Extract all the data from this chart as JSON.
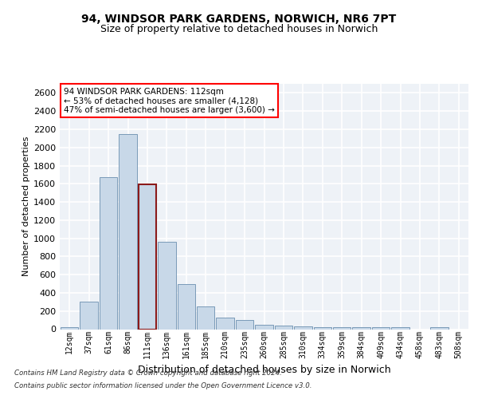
{
  "title1": "94, WINDSOR PARK GARDENS, NORWICH, NR6 7PT",
  "title2": "Size of property relative to detached houses in Norwich",
  "xlabel": "Distribution of detached houses by size in Norwich",
  "ylabel": "Number of detached properties",
  "footer1": "Contains HM Land Registry data © Crown copyright and database right 2024.",
  "footer2": "Contains public sector information licensed under the Open Government Licence v3.0.",
  "annotation_line1": "94 WINDSOR PARK GARDENS: 112sqm",
  "annotation_line2": "← 53% of detached houses are smaller (4,128)",
  "annotation_line3": "47% of semi-detached houses are larger (3,600) →",
  "categories": [
    "12sqm",
    "37sqm",
    "61sqm",
    "86sqm",
    "111sqm",
    "136sqm",
    "161sqm",
    "185sqm",
    "210sqm",
    "235sqm",
    "260sqm",
    "285sqm",
    "310sqm",
    "334sqm",
    "359sqm",
    "384sqm",
    "409sqm",
    "434sqm",
    "458sqm",
    "483sqm",
    "508sqm"
  ],
  "bar_values": [
    25,
    300,
    1670,
    2150,
    1590,
    960,
    500,
    250,
    125,
    100,
    50,
    40,
    30,
    20,
    20,
    20,
    20,
    20,
    0,
    25,
    0
  ],
  "bar_color": "#c8d8e8",
  "bar_edge_color": "#7a9ab8",
  "highlight_bar_index": 4,
  "highlight_edge_color": "#8b1a1a",
  "highlight_edge_width": 1.5,
  "ylim": [
    0,
    2700
  ],
  "yticks": [
    0,
    200,
    400,
    600,
    800,
    1000,
    1200,
    1400,
    1600,
    1800,
    2000,
    2200,
    2400,
    2600
  ],
  "bg_color": "#eef2f7",
  "grid_color": "#ffffff",
  "title1_fontsize": 10,
  "title2_fontsize": 9,
  "xlabel_fontsize": 9,
  "ylabel_fontsize": 8,
  "tick_fontsize": 8,
  "xtick_fontsize": 7
}
